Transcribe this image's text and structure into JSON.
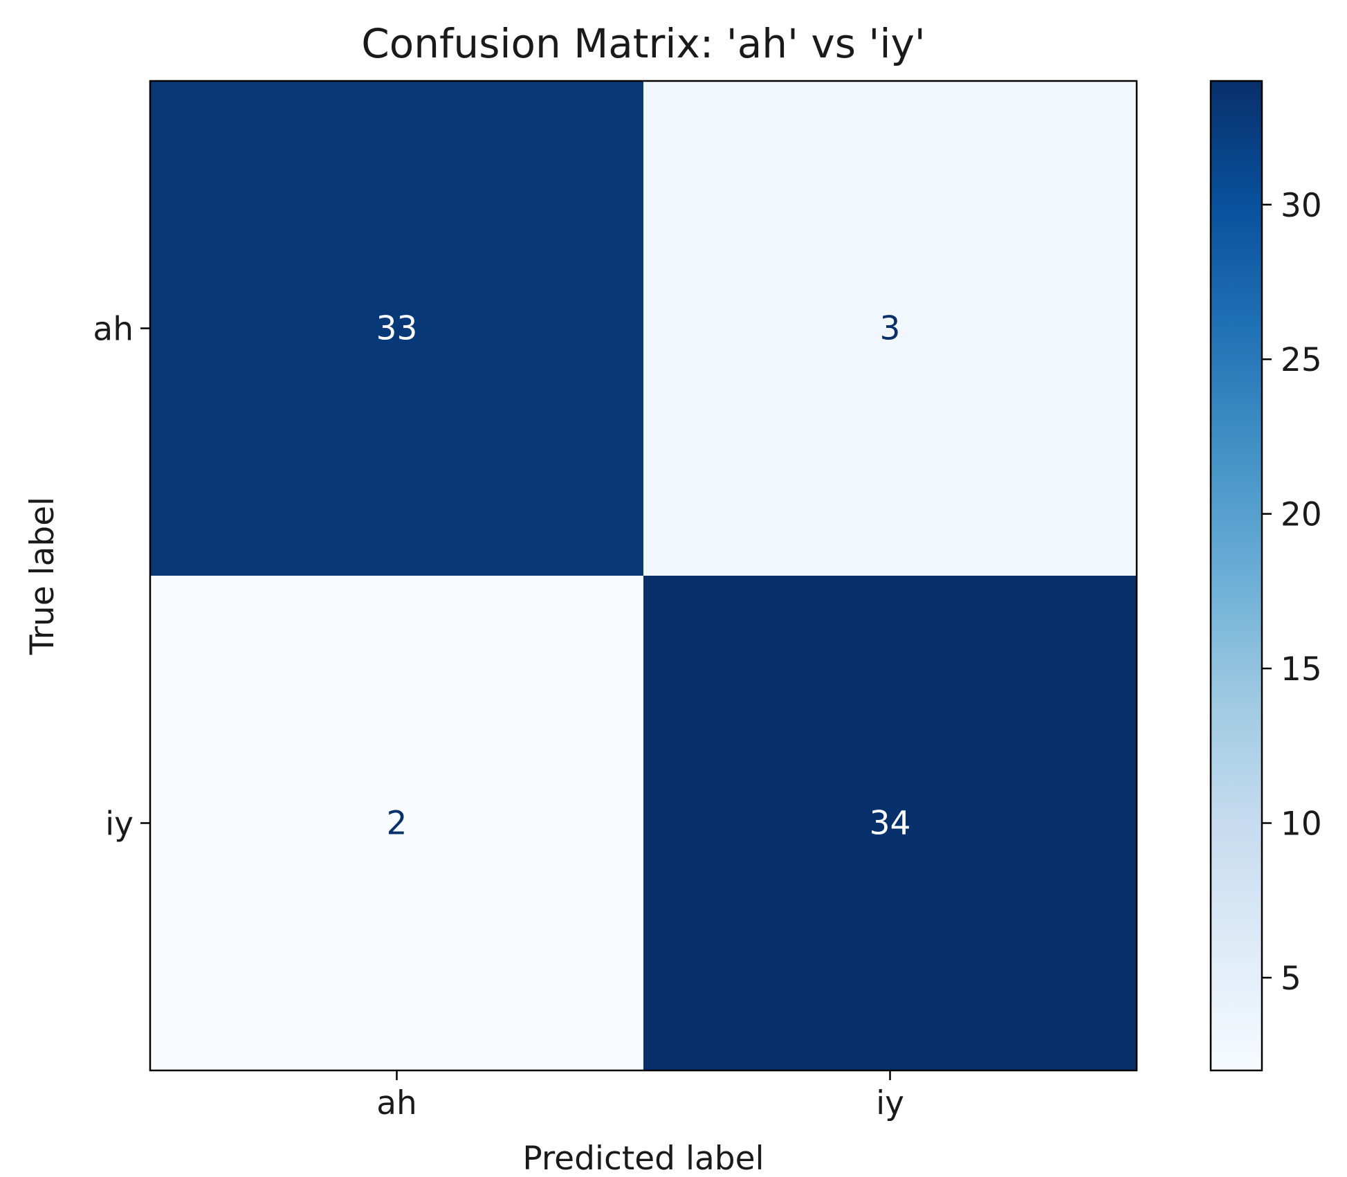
{
  "chart_data": {
    "type": "heatmap",
    "title": "Confusion Matrix: 'ah' vs 'iy'",
    "xlabel": "Predicted label",
    "ylabel": "True label",
    "x_categories": [
      "ah",
      "iy"
    ],
    "y_categories": [
      "ah",
      "iy"
    ],
    "values": [
      [
        33,
        3
      ],
      [
        2,
        34
      ]
    ],
    "colormap": "Blues",
    "colorbar": {
      "vmin": 2,
      "vmax": 34,
      "ticks": [
        5,
        10,
        15,
        20,
        25,
        30
      ]
    },
    "colors": {
      "dark": "#08306b",
      "light": "#f7fbff",
      "text_on_dark": "#ffffff",
      "text_on_light": "#08306b"
    }
  }
}
